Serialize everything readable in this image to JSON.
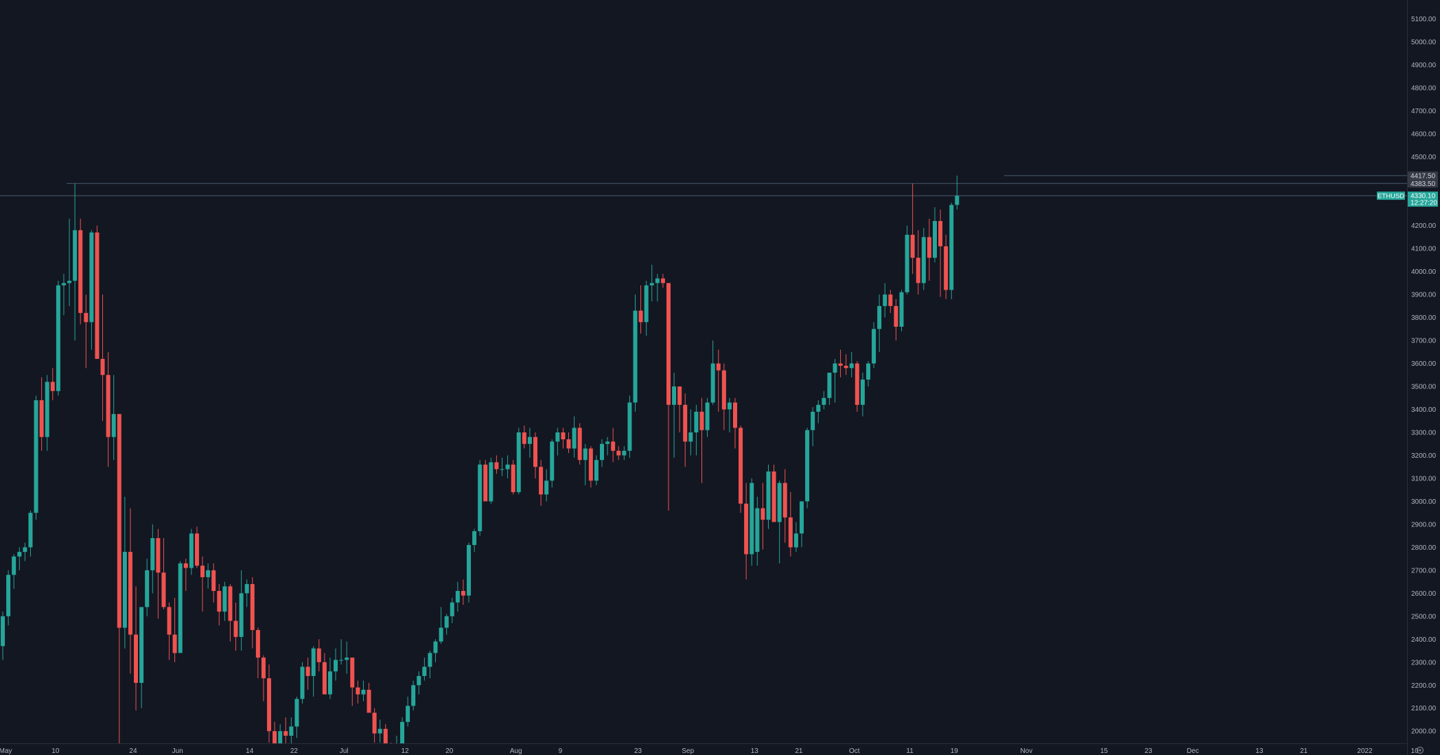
{
  "chart_data": {
    "type": "candlestick",
    "symbol": "ETHUSD",
    "colors": {
      "background": "#131722",
      "up": "#26a69a",
      "down": "#ef5350",
      "axis_text": "#b2b5be",
      "guide_line": "#4a5b6b",
      "price_tag": "#26a69a",
      "level_tag": "#363a45"
    },
    "y_axis": {
      "min": 1920,
      "max": 5140,
      "ticks": [
        "2000.00",
        "2100.00",
        "2200.00",
        "2300.00",
        "2400.00",
        "2500.00",
        "2600.00",
        "2700.00",
        "2800.00",
        "2900.00",
        "3000.00",
        "3100.00",
        "3200.00",
        "3300.00",
        "3400.00",
        "3500.00",
        "3600.00",
        "3700.00",
        "3800.00",
        "3900.00",
        "4000.00",
        "4100.00",
        "4200.00",
        "4500.00",
        "4600.00",
        "4700.00",
        "4800.00",
        "4900.00",
        "5000.00",
        "5100.00"
      ]
    },
    "x_axis": {
      "start": "2021-04-30",
      "end": "2022-01-13",
      "ticks": [
        {
          "date": "2021-05-01",
          "label": "May"
        },
        {
          "date": "2021-05-10",
          "label": "10"
        },
        {
          "date": "2021-05-24",
          "label": "24"
        },
        {
          "date": "2021-06-01",
          "label": "Jun"
        },
        {
          "date": "2021-06-14",
          "label": "14"
        },
        {
          "date": "2021-06-22",
          "label": "22"
        },
        {
          "date": "2021-07-01",
          "label": "Jul"
        },
        {
          "date": "2021-07-12",
          "label": "12"
        },
        {
          "date": "2021-07-20",
          "label": "20"
        },
        {
          "date": "2021-08-01",
          "label": "Aug"
        },
        {
          "date": "2021-08-09",
          "label": "9"
        },
        {
          "date": "2021-08-23",
          "label": "23"
        },
        {
          "date": "2021-09-01",
          "label": "Sep"
        },
        {
          "date": "2021-09-13",
          "label": "13"
        },
        {
          "date": "2021-09-21",
          "label": "21"
        },
        {
          "date": "2021-10-01",
          "label": "Oct"
        },
        {
          "date": "2021-10-11",
          "label": "11"
        },
        {
          "date": "2021-10-19",
          "label": "19"
        },
        {
          "date": "2021-11-01",
          "label": "Nov"
        },
        {
          "date": "2021-11-15",
          "label": "15"
        },
        {
          "date": "2021-11-23",
          "label": "23"
        },
        {
          "date": "2021-12-01",
          "label": "Dec"
        },
        {
          "date": "2021-12-13",
          "label": "13"
        },
        {
          "date": "2021-12-21",
          "label": "21"
        },
        {
          "date": "2022-01-01",
          "label": "2022"
        },
        {
          "date": "2022-01-10",
          "label": "10"
        }
      ]
    },
    "horizontal_lines": [
      {
        "value": 4383.5,
        "label": "4383.50",
        "from": "2021-05-12"
      },
      {
        "value": 4417.5,
        "label": "4417.50",
        "from": "2021-10-28"
      },
      {
        "value": 4330.1,
        "label": "4330.10",
        "from": "2021-04-30"
      }
    ],
    "current_price": {
      "value": 4330.1,
      "label": "4330.10",
      "countdown": "12:27:20",
      "symbol_label": "ETHUSD"
    },
    "candles_start_date": "2021-04-30",
    "candles": [
      [
        2370,
        2520,
        2310,
        2500
      ],
      [
        2500,
        2700,
        2460,
        2680
      ],
      [
        2680,
        2770,
        2620,
        2760
      ],
      [
        2760,
        2800,
        2700,
        2780
      ],
      [
        2780,
        2820,
        2740,
        2800
      ],
      [
        2800,
        2960,
        2760,
        2950
      ],
      [
        2950,
        3460,
        2920,
        3440
      ],
      [
        3440,
        3540,
        3220,
        3280
      ],
      [
        3280,
        3550,
        3220,
        3520
      ],
      [
        3520,
        3580,
        3440,
        3480
      ],
      [
        3480,
        3960,
        3460,
        3940
      ],
      [
        3940,
        3990,
        3810,
        3950
      ],
      [
        3950,
        4230,
        3850,
        3960
      ],
      [
        3960,
        4383,
        3700,
        4180
      ],
      [
        4180,
        4230,
        3770,
        3820
      ],
      [
        3820,
        3900,
        3580,
        3780
      ],
      [
        3780,
        4180,
        3660,
        4170
      ],
      [
        4170,
        4200,
        3640,
        3620
      ],
      [
        3620,
        3900,
        3350,
        3550
      ],
      [
        3550,
        3650,
        3150,
        3280
      ],
      [
        3280,
        3550,
        3180,
        3380
      ],
      [
        3380,
        3380,
        1890,
        2450
      ],
      [
        2450,
        3020,
        2360,
        2780
      ],
      [
        2780,
        2970,
        2250,
        2420
      ],
      [
        2420,
        2630,
        2090,
        2210
      ],
      [
        2210,
        2530,
        2100,
        2540
      ],
      [
        2540,
        2750,
        2500,
        2700
      ],
      [
        2700,
        2900,
        2600,
        2840
      ],
      [
        2840,
        2880,
        2490,
        2690
      ],
      [
        2690,
        2840,
        2530,
        2540
      ],
      [
        2540,
        2560,
        2310,
        2420
      ],
      [
        2420,
        2580,
        2300,
        2340
      ],
      [
        2340,
        2740,
        2340,
        2730
      ],
      [
        2730,
        2750,
        2610,
        2710
      ],
      [
        2710,
        2880,
        2680,
        2860
      ],
      [
        2860,
        2890,
        2710,
        2720
      ],
      [
        2720,
        2760,
        2520,
        2670
      ],
      [
        2670,
        2730,
        2620,
        2700
      ],
      [
        2700,
        2730,
        2560,
        2610
      ],
      [
        2610,
        2640,
        2460,
        2520
      ],
      [
        2520,
        2650,
        2480,
        2630
      ],
      [
        2630,
        2640,
        2390,
        2480
      ],
      [
        2480,
        2560,
        2350,
        2410
      ],
      [
        2410,
        2700,
        2350,
        2600
      ],
      [
        2600,
        2660,
        2540,
        2640
      ],
      [
        2640,
        2670,
        2360,
        2440
      ],
      [
        2440,
        2450,
        2230,
        2320
      ],
      [
        2320,
        2330,
        2130,
        2230
      ],
      [
        2230,
        2290,
        1950,
        2000
      ],
      [
        2000,
        2040,
        1820,
        1880
      ],
      [
        1880,
        2030,
        1860,
        2000
      ],
      [
        2000,
        2060,
        1920,
        1980
      ],
      [
        1980,
        2060,
        1880,
        2020
      ],
      [
        2020,
        2150,
        1970,
        2140
      ],
      [
        2140,
        2300,
        2120,
        2280
      ],
      [
        2280,
        2320,
        2180,
        2240
      ],
      [
        2240,
        2370,
        2150,
        2360
      ],
      [
        2360,
        2400,
        2260,
        2300
      ],
      [
        2300,
        2340,
        2160,
        2160
      ],
      [
        2160,
        2320,
        2140,
        2260
      ],
      [
        2260,
        2360,
        2220,
        2310
      ],
      [
        2310,
        2400,
        2290,
        2310
      ],
      [
        2310,
        2390,
        2250,
        2320
      ],
      [
        2320,
        2320,
        2110,
        2190
      ],
      [
        2190,
        2220,
        2120,
        2160
      ],
      [
        2160,
        2220,
        2130,
        2180
      ],
      [
        2180,
        2210,
        2080,
        2080
      ],
      [
        2080,
        2100,
        1950,
        1990
      ],
      [
        1990,
        2050,
        1950,
        2010
      ],
      [
        2010,
        2030,
        1880,
        1940
      ],
      [
        1940,
        1950,
        1870,
        1900
      ],
      [
        1900,
        1980,
        1870,
        1920
      ],
      [
        1920,
        2060,
        1910,
        2040
      ],
      [
        2040,
        2150,
        2020,
        2110
      ],
      [
        2110,
        2220,
        2090,
        2200
      ],
      [
        2200,
        2260,
        2160,
        2240
      ],
      [
        2240,
        2320,
        2220,
        2280
      ],
      [
        2280,
        2350,
        2230,
        2340
      ],
      [
        2340,
        2400,
        2300,
        2390
      ],
      [
        2390,
        2540,
        2380,
        2450
      ],
      [
        2450,
        2510,
        2420,
        2500
      ],
      [
        2500,
        2580,
        2470,
        2560
      ],
      [
        2560,
        2650,
        2520,
        2610
      ],
      [
        2610,
        2660,
        2550,
        2590
      ],
      [
        2590,
        2820,
        2560,
        2810
      ],
      [
        2810,
        2880,
        2780,
        2870
      ],
      [
        2870,
        3180,
        2850,
        3160
      ],
      [
        3160,
        3180,
        3000,
        3000
      ],
      [
        3000,
        3190,
        2990,
        3170
      ],
      [
        3170,
        3200,
        3120,
        3140
      ],
      [
        3140,
        3190,
        3110,
        3140
      ],
      [
        3140,
        3200,
        3100,
        3160
      ],
      [
        3160,
        3180,
        3030,
        3040
      ],
      [
        3040,
        3320,
        3030,
        3300
      ],
      [
        3300,
        3330,
        3230,
        3250
      ],
      [
        3250,
        3320,
        3190,
        3280
      ],
      [
        3280,
        3300,
        3100,
        3150
      ],
      [
        3150,
        3180,
        2980,
        3030
      ],
      [
        3030,
        3140,
        3000,
        3090
      ],
      [
        3090,
        3270,
        3060,
        3260
      ],
      [
        3260,
        3320,
        3200,
        3300
      ],
      [
        3300,
        3320,
        3230,
        3270
      ],
      [
        3270,
        3300,
        3210,
        3230
      ],
      [
        3230,
        3370,
        3190,
        3320
      ],
      [
        3320,
        3340,
        3160,
        3180
      ],
      [
        3180,
        3250,
        3070,
        3230
      ],
      [
        3230,
        3240,
        3060,
        3090
      ],
      [
        3090,
        3200,
        3070,
        3180
      ],
      [
        3180,
        3270,
        3150,
        3250
      ],
      [
        3250,
        3280,
        3200,
        3260
      ],
      [
        3260,
        3320,
        3170,
        3220
      ],
      [
        3220,
        3240,
        3180,
        3200
      ],
      [
        3200,
        3240,
        3180,
        3220
      ],
      [
        3220,
        3460,
        3190,
        3430
      ],
      [
        3430,
        3900,
        3390,
        3830
      ],
      [
        3830,
        3940,
        3730,
        3780
      ],
      [
        3780,
        3960,
        3720,
        3940
      ],
      [
        3940,
        4030,
        3870,
        3950
      ],
      [
        3950,
        3990,
        3870,
        3970
      ],
      [
        3970,
        3990,
        3930,
        3950
      ],
      [
        3950,
        3950,
        2960,
        3420
      ],
      [
        3420,
        3560,
        3190,
        3500
      ],
      [
        3500,
        3500,
        3300,
        3420
      ],
      [
        3420,
        3470,
        3150,
        3260
      ],
      [
        3260,
        3400,
        3200,
        3300
      ],
      [
        3300,
        3420,
        3200,
        3390
      ],
      [
        3390,
        3450,
        3080,
        3310
      ],
      [
        3310,
        3450,
        3280,
        3430
      ],
      [
        3430,
        3700,
        3420,
        3600
      ],
      [
        3600,
        3660,
        3390,
        3570
      ],
      [
        3570,
        3600,
        3310,
        3400
      ],
      [
        3400,
        3450,
        3300,
        3430
      ],
      [
        3430,
        3450,
        3230,
        3320
      ],
      [
        3320,
        3330,
        2950,
        2990
      ],
      [
        2990,
        3080,
        2660,
        2770
      ],
      [
        2770,
        3100,
        2720,
        3080
      ],
      [
        2780,
        3020,
        2720,
        2970
      ],
      [
        2970,
        3080,
        2790,
        2920
      ],
      [
        2920,
        3160,
        2880,
        3130
      ],
      [
        3130,
        3160,
        2940,
        2910
      ],
      [
        2910,
        3090,
        2730,
        3080
      ],
      [
        3080,
        3140,
        2820,
        2930
      ],
      [
        2930,
        3040,
        2760,
        2800
      ],
      [
        2800,
        2910,
        2780,
        2860
      ],
      [
        2860,
        3000,
        2800,
        3000
      ],
      [
        3000,
        3320,
        2970,
        3310
      ],
      [
        3310,
        3410,
        3240,
        3390
      ],
      [
        3390,
        3440,
        3340,
        3420
      ],
      [
        3420,
        3480,
        3400,
        3450
      ],
      [
        3450,
        3550,
        3420,
        3560
      ],
      [
        3560,
        3620,
        3430,
        3600
      ],
      [
        3600,
        3660,
        3540,
        3590
      ],
      [
        3590,
        3640,
        3550,
        3580
      ],
      [
        3580,
        3650,
        3540,
        3600
      ],
      [
        3600,
        3610,
        3390,
        3420
      ],
      [
        3420,
        3560,
        3370,
        3530
      ],
      [
        3530,
        3610,
        3500,
        3600
      ],
      [
        3600,
        3780,
        3580,
        3750
      ],
      [
        3750,
        3900,
        3650,
        3850
      ],
      [
        3850,
        3950,
        3800,
        3900
      ],
      [
        3900,
        3920,
        3820,
        3850
      ],
      [
        3850,
        3880,
        3700,
        3760
      ],
      [
        3760,
        3920,
        3740,
        3910
      ],
      [
        3910,
        4200,
        3900,
        4160
      ],
      [
        4160,
        4383,
        3990,
        4060
      ],
      [
        4060,
        4180,
        3900,
        3950
      ],
      [
        3950,
        4190,
        3920,
        4150
      ],
      [
        4150,
        4230,
        3960,
        4060
      ],
      [
        4060,
        4280,
        4040,
        4220
      ],
      [
        4220,
        4270,
        3890,
        4110
      ],
      [
        4110,
        4160,
        3880,
        3920
      ],
      [
        3920,
        4300,
        3880,
        4290
      ],
      [
        4290,
        4417.5,
        4270,
        4330.1
      ]
    ]
  }
}
